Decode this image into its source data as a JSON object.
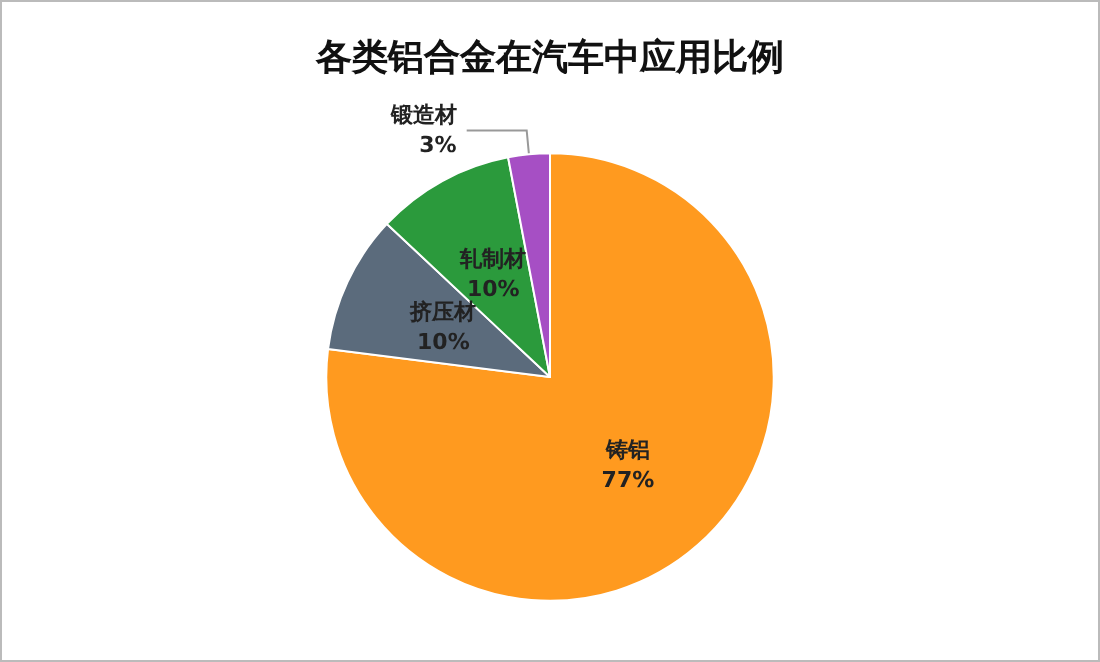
{
  "chart_data": {
    "type": "pie",
    "title": "各类铝合金在汽车中应用比例",
    "categories": [
      "铸铝",
      "挤压材",
      "轧制材",
      "锻造材"
    ],
    "values": [
      77,
      10,
      10,
      3
    ],
    "value_labels": [
      "77%",
      "10%",
      "10%",
      "3%"
    ],
    "colors": [
      "#ff9a1f",
      "#5b6b7c",
      "#2b9a3c",
      "#a64fc4"
    ],
    "legend": false
  }
}
